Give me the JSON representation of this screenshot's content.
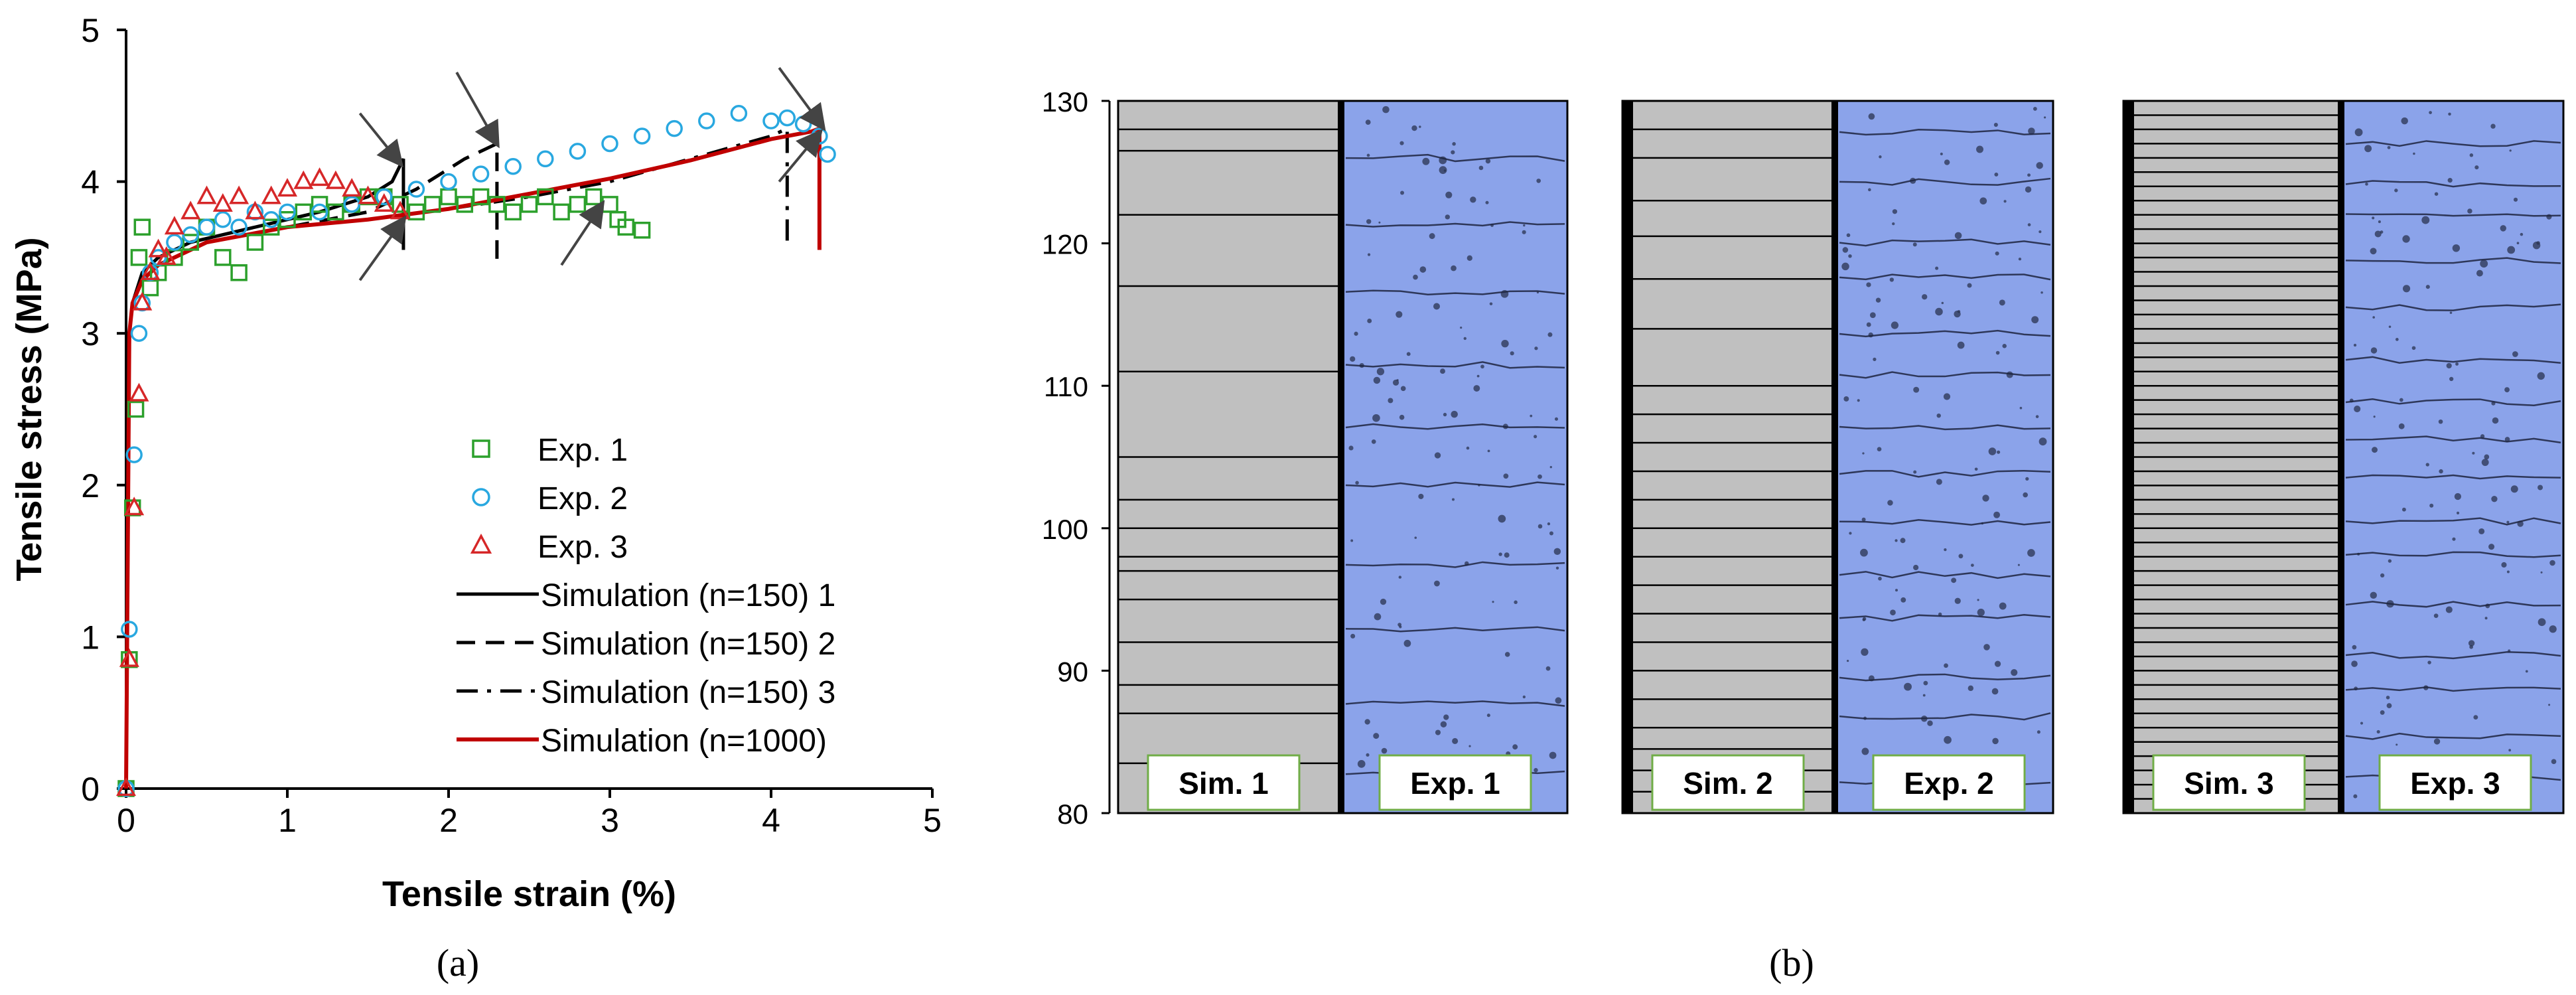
{
  "captions": {
    "a": "(a)",
    "b": "(b)"
  },
  "colors": {
    "exp1": "#2ca02c",
    "exp2": "#29a8e0",
    "exp3": "#d62728",
    "sim150": "#000000",
    "sim1000": "#c00000",
    "sim_panel_fill": "#c0c0c0",
    "exp_image_fill": "#8ba3ea",
    "label_border": "#70ad47"
  },
  "chart_data": [
    {
      "type": "scatter",
      "title": "",
      "xlabel": "Tensile strain (%)",
      "ylabel": "Tensile stress (MPa)",
      "xlim": [
        0,
        5
      ],
      "ylim": [
        0,
        5
      ],
      "xticks": [
        "0",
        "1",
        "2",
        "3",
        "4",
        "5"
      ],
      "yticks": [
        "0",
        "1",
        "2",
        "3",
        "4",
        "5"
      ],
      "grid": false,
      "legend_position": "bottom-right",
      "series": [
        {
          "name": "Exp. 1",
          "kind": "marker",
          "marker": "square",
          "color": "#2ca02c",
          "x": [
            0.0,
            0.02,
            0.04,
            0.06,
            0.08,
            0.1,
            0.15,
            0.2,
            0.3,
            0.4,
            0.5,
            0.6,
            0.7,
            0.8,
            0.9,
            1.0,
            1.1,
            1.2,
            1.3,
            1.4,
            1.5,
            1.6,
            1.7,
            1.8,
            1.9,
            2.0,
            2.1,
            2.2,
            2.3,
            2.4,
            2.5,
            2.6,
            2.7,
            2.8,
            2.9,
            3.0,
            3.05,
            3.1,
            3.2
          ],
          "y": [
            0.0,
            0.85,
            1.85,
            2.5,
            3.5,
            3.7,
            3.3,
            3.4,
            3.5,
            3.6,
            3.7,
            3.5,
            3.4,
            3.6,
            3.7,
            3.75,
            3.8,
            3.85,
            3.8,
            3.85,
            3.9,
            3.9,
            3.85,
            3.8,
            3.85,
            3.9,
            3.85,
            3.9,
            3.85,
            3.8,
            3.85,
            3.9,
            3.8,
            3.85,
            3.9,
            3.85,
            3.75,
            3.7,
            3.68
          ]
        },
        {
          "name": "Exp. 2",
          "kind": "marker",
          "marker": "circle",
          "color": "#29a8e0",
          "x": [
            0.0,
            0.02,
            0.05,
            0.08,
            0.1,
            0.15,
            0.2,
            0.3,
            0.4,
            0.5,
            0.6,
            0.7,
            0.8,
            0.9,
            1.0,
            1.2,
            1.4,
            1.6,
            1.8,
            2.0,
            2.2,
            2.4,
            2.6,
            2.8,
            3.0,
            3.2,
            3.4,
            3.6,
            3.8,
            4.0,
            4.1,
            4.2,
            4.3,
            4.35
          ],
          "y": [
            0.0,
            1.05,
            2.2,
            3.0,
            3.2,
            3.4,
            3.5,
            3.6,
            3.65,
            3.7,
            3.75,
            3.7,
            3.8,
            3.75,
            3.8,
            3.8,
            3.85,
            3.9,
            3.95,
            4.0,
            4.05,
            4.1,
            4.15,
            4.2,
            4.25,
            4.3,
            4.35,
            4.4,
            4.45,
            4.4,
            4.42,
            4.38,
            4.3,
            4.18
          ]
        },
        {
          "name": "Exp. 3",
          "kind": "marker",
          "marker": "triangle",
          "color": "#d62728",
          "x": [
            0.0,
            0.02,
            0.05,
            0.08,
            0.1,
            0.15,
            0.2,
            0.25,
            0.3,
            0.4,
            0.5,
            0.6,
            0.7,
            0.8,
            0.9,
            1.0,
            1.1,
            1.2,
            1.3,
            1.4,
            1.5,
            1.6,
            1.7
          ],
          "y": [
            0.0,
            0.85,
            1.85,
            2.6,
            3.2,
            3.4,
            3.55,
            3.5,
            3.7,
            3.8,
            3.9,
            3.85,
            3.9,
            3.8,
            3.9,
            3.95,
            4.0,
            4.02,
            4.0,
            3.95,
            3.9,
            3.85,
            3.8
          ]
        },
        {
          "name": "Simulation  (n=150) 1",
          "kind": "line",
          "dash": "solid",
          "color": "#000000",
          "x": [
            0.0,
            0.02,
            0.04,
            0.1,
            0.2,
            0.4,
            0.8,
            1.2,
            1.5,
            1.65,
            1.72,
            1.72
          ],
          "y": [
            0.0,
            3.0,
            3.2,
            3.4,
            3.5,
            3.6,
            3.7,
            3.8,
            3.9,
            4.0,
            4.15,
            3.55
          ]
        },
        {
          "name": "Simulation  (n=150) 2",
          "kind": "line",
          "dash": "dashed",
          "color": "#000000",
          "x": [
            0.0,
            0.02,
            0.04,
            0.1,
            0.2,
            0.5,
            1.0,
            1.5,
            1.8,
            2.1,
            2.3,
            2.3
          ],
          "y": [
            0.0,
            3.0,
            3.2,
            3.35,
            3.45,
            3.6,
            3.7,
            3.8,
            3.95,
            4.15,
            4.25,
            3.45
          ]
        },
        {
          "name": "Simulation  (n=150) 3",
          "kind": "line",
          "dash": "dashdot",
          "color": "#000000",
          "x": [
            0.0,
            0.02,
            0.04,
            0.1,
            0.2,
            0.5,
            1.0,
            1.5,
            2.0,
            2.5,
            3.0,
            3.5,
            4.0,
            4.1,
            4.1
          ],
          "y": [
            0.0,
            3.0,
            3.2,
            3.35,
            3.45,
            3.6,
            3.7,
            3.75,
            3.82,
            3.9,
            4.0,
            4.15,
            4.3,
            4.35,
            3.55
          ]
        },
        {
          "name": "Simulation  (n=1000)",
          "kind": "line",
          "dash": "solid",
          "color": "#c00000",
          "x": [
            0.0,
            0.02,
            0.04,
            0.1,
            0.2,
            0.5,
            1.0,
            1.5,
            2.0,
            2.5,
            3.0,
            3.5,
            4.0,
            4.25,
            4.3,
            4.3
          ],
          "y": [
            0.0,
            3.0,
            3.2,
            3.35,
            3.45,
            3.6,
            3.7,
            3.75,
            3.82,
            3.92,
            4.02,
            4.14,
            4.28,
            4.33,
            4.35,
            3.55
          ]
        }
      ],
      "annotations": [
        {
          "kind": "arrow",
          "from": [
            1.45,
            4.45
          ],
          "to": [
            1.7,
            4.12
          ]
        },
        {
          "kind": "arrow",
          "from": [
            2.05,
            4.72
          ],
          "to": [
            2.3,
            4.25
          ]
        },
        {
          "kind": "arrow",
          "from": [
            4.05,
            4.75
          ],
          "to": [
            4.32,
            4.36
          ]
        },
        {
          "kind": "arrow",
          "from": [
            1.45,
            3.35
          ],
          "to": [
            1.72,
            3.75
          ]
        },
        {
          "kind": "arrow",
          "from": [
            2.7,
            3.45
          ],
          "to": [
            2.95,
            3.85
          ]
        },
        {
          "kind": "arrow",
          "from": [
            4.05,
            4.0
          ],
          "to": [
            4.3,
            4.32
          ]
        }
      ]
    },
    {
      "type": "diagram",
      "title": "",
      "ylim": [
        80,
        130
      ],
      "yticks": [
        "80",
        "90",
        "100",
        "110",
        "120",
        "130"
      ],
      "panels": [
        {
          "sim_label": "Sim. 1",
          "exp_label": "Exp. 1",
          "sim_crack_y": [
            83.5,
            87,
            89,
            92,
            95,
            97,
            98,
            100,
            102,
            105,
            111,
            117,
            122,
            126.5,
            128
          ]
        },
        {
          "sim_label": "Sim. 2",
          "exp_label": "Exp. 2",
          "sim_crack_y": [
            81.5,
            83,
            84.5,
            86,
            88,
            90,
            92,
            94,
            96,
            98,
            100,
            102,
            104,
            106,
            108,
            110,
            114,
            117.5,
            120.5,
            123,
            126,
            128
          ]
        },
        {
          "sim_label": "Sim. 3",
          "exp_label": "Exp. 3",
          "sim_crack_y": [
            81,
            82,
            83,
            84,
            85,
            86,
            87,
            88,
            89,
            90,
            91,
            92,
            93,
            94,
            95,
            96,
            97,
            98,
            99,
            100,
            101,
            102,
            103,
            104,
            105,
            106,
            107,
            108,
            109,
            110,
            111,
            112,
            113,
            114,
            115,
            116,
            117,
            118,
            119,
            120,
            121,
            122,
            123,
            124,
            125,
            126,
            127,
            128,
            129
          ]
        }
      ]
    }
  ]
}
